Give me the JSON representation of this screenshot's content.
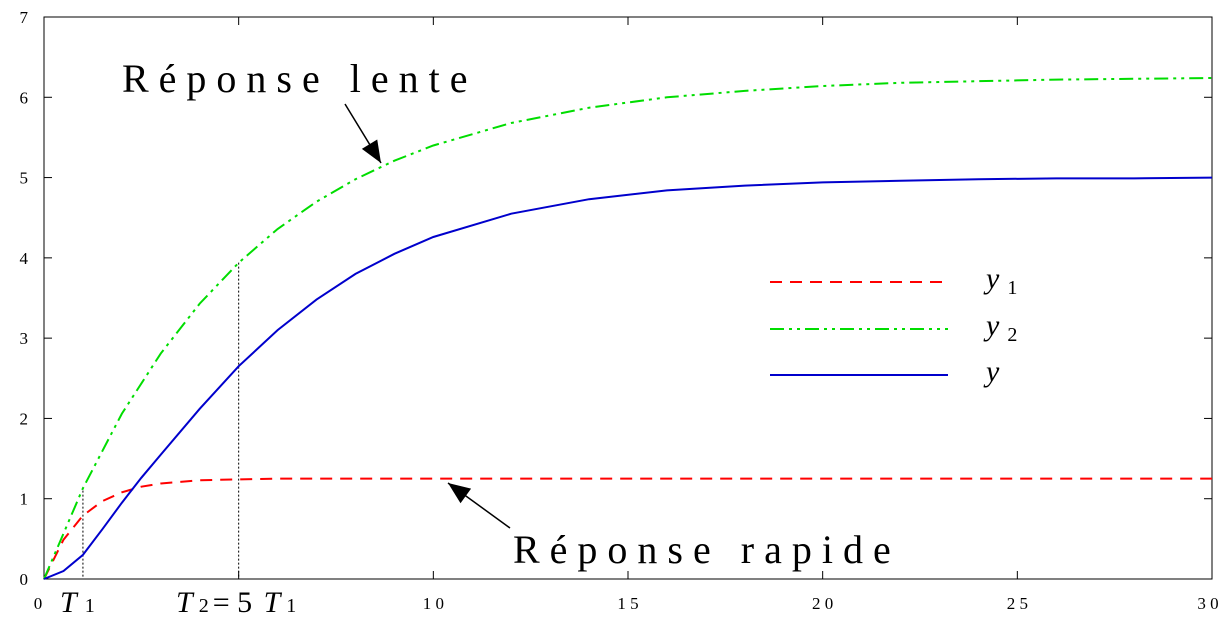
{
  "chart_data": {
    "type": "line",
    "title": "",
    "xlabel": "",
    "ylabel": "",
    "xlim": [
      0,
      30
    ],
    "ylim": [
      0,
      7
    ],
    "x_ticks": [
      "0",
      "10",
      "15",
      "20",
      "25",
      "30"
    ],
    "y_ticks": [
      "0",
      "1",
      "2",
      "3",
      "4",
      "5",
      "6",
      "7"
    ],
    "grid": false,
    "legend_position": "center-right",
    "series": [
      {
        "name": "y",
        "subscript": "1",
        "color": "#ff0000",
        "style": "dashed",
        "x": [
          0,
          0.5,
          1,
          1.5,
          2,
          2.5,
          3,
          3.5,
          4,
          5,
          6,
          8,
          10,
          15,
          20,
          25,
          30
        ],
        "y": [
          0,
          0.49,
          0.79,
          0.97,
          1.08,
          1.15,
          1.19,
          1.21,
          1.23,
          1.24,
          1.25,
          1.25,
          1.25,
          1.25,
          1.25,
          1.25,
          1.25
        ]
      },
      {
        "name": "y",
        "subscript": "2",
        "color": "#00dd00",
        "style": "dash-dot-dot",
        "x": [
          0,
          1,
          2,
          3,
          4,
          5,
          6,
          7,
          8,
          9,
          10,
          12,
          14,
          16,
          18,
          20,
          22,
          24,
          26,
          28,
          30
        ],
        "y": [
          0,
          1.13,
          2.06,
          2.81,
          3.43,
          3.94,
          4.36,
          4.7,
          4.98,
          5.21,
          5.4,
          5.68,
          5.87,
          6.0,
          6.08,
          6.14,
          6.18,
          6.2,
          6.22,
          6.23,
          6.24
        ]
      },
      {
        "name": "y",
        "subscript": "",
        "color": "#0000cc",
        "style": "solid",
        "x": [
          0,
          0.5,
          1,
          1.5,
          2,
          2.5,
          3,
          4,
          5,
          6,
          7,
          8,
          9,
          10,
          12,
          14,
          16,
          18,
          20,
          22,
          24,
          26,
          28,
          30
        ],
        "y": [
          0,
          0.1,
          0.3,
          0.62,
          0.95,
          1.26,
          1.55,
          2.12,
          2.65,
          3.1,
          3.48,
          3.8,
          4.05,
          4.26,
          4.55,
          4.73,
          4.84,
          4.9,
          4.94,
          4.96,
          4.98,
          4.99,
          4.99,
          5.0
        ]
      }
    ],
    "reference_lines": [
      {
        "x": 1,
        "y": 1.1
      },
      {
        "x": 5,
        "y": 3.94
      }
    ],
    "x_markers": {
      "t1_symbol": "T",
      "t1_sub": "1",
      "t2_symbol": "T",
      "t2_sub": "2",
      "t2_eq": "= 5",
      "t2_sym2": "T",
      "t2_sub2": "1"
    },
    "annotations": {
      "slow": "Réponse lente",
      "fast": "Réponse rapide"
    }
  }
}
